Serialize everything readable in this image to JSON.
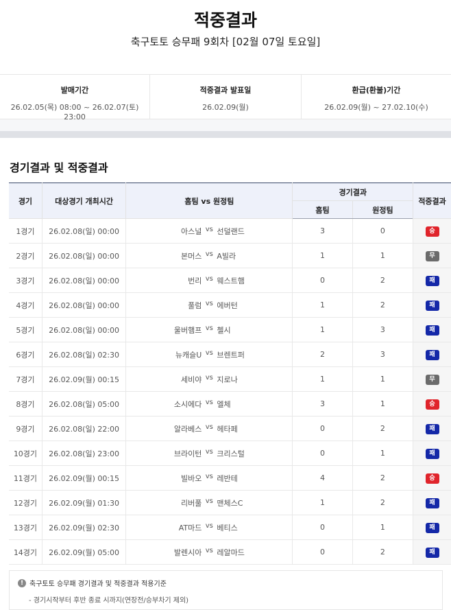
{
  "header": {
    "title": "적중결과",
    "subtitle": "축구토토 승무패 9회차 [02월 07일 토요일]"
  },
  "info": [
    {
      "label": "발매기간",
      "value": "26.02.05(목) 08:00 ~ 26.02.07(토) 23:00"
    },
    {
      "label": "적중결과 발표일",
      "value": "26.02.09(월)"
    },
    {
      "label": "환급(환불)기간",
      "value": "26.02.09(월) ~ 27.02.10(수)"
    }
  ],
  "section_title": "경기결과 및 적중결과",
  "table": {
    "headers": {
      "game": "경기",
      "time": "대상경기 개최시간",
      "match": "홈팀 vs 원정팀",
      "score": "경기결과",
      "home": "홈팀",
      "away": "원정팀",
      "result": "적중결과"
    },
    "vs": "vs",
    "result_colors": {
      "승": "#e0242b",
      "무": "#6b6b6b",
      "패": "#1428a8"
    },
    "rows": [
      {
        "game": "1경기",
        "time": "26.02.08(일) 00:00",
        "home": "아스널",
        "away": "선덜랜드",
        "hs": "3",
        "as": "0",
        "result": "승"
      },
      {
        "game": "2경기",
        "time": "26.02.08(일) 00:00",
        "home": "본머스",
        "away": "A빌라",
        "hs": "1",
        "as": "1",
        "result": "무"
      },
      {
        "game": "3경기",
        "time": "26.02.08(일) 00:00",
        "home": "번리",
        "away": "웨스트햄",
        "hs": "0",
        "as": "2",
        "result": "패"
      },
      {
        "game": "4경기",
        "time": "26.02.08(일) 00:00",
        "home": "풀럼",
        "away": "에버턴",
        "hs": "1",
        "as": "2",
        "result": "패"
      },
      {
        "game": "5경기",
        "time": "26.02.08(일) 00:00",
        "home": "울버햄프",
        "away": "첼시",
        "hs": "1",
        "as": "3",
        "result": "패"
      },
      {
        "game": "6경기",
        "time": "26.02.08(일) 02:30",
        "home": "뉴캐슬U",
        "away": "브렌트퍼",
        "hs": "2",
        "as": "3",
        "result": "패"
      },
      {
        "game": "7경기",
        "time": "26.02.09(월) 00:15",
        "home": "세비야",
        "away": "지로나",
        "hs": "1",
        "as": "1",
        "result": "무"
      },
      {
        "game": "8경기",
        "time": "26.02.08(일) 05:00",
        "home": "소시에다",
        "away": "엘체",
        "hs": "3",
        "as": "1",
        "result": "승"
      },
      {
        "game": "9경기",
        "time": "26.02.08(일) 22:00",
        "home": "알라베스",
        "away": "헤타페",
        "hs": "0",
        "as": "2",
        "result": "패"
      },
      {
        "game": "10경기",
        "time": "26.02.08(일) 23:00",
        "home": "브라이턴",
        "away": "크리스털",
        "hs": "0",
        "as": "1",
        "result": "패"
      },
      {
        "game": "11경기",
        "time": "26.02.09(월) 00:15",
        "home": "빌바오",
        "away": "레반테",
        "hs": "4",
        "as": "2",
        "result": "승"
      },
      {
        "game": "12경기",
        "time": "26.02.09(월) 01:30",
        "home": "리버풀",
        "away": "맨체스C",
        "hs": "1",
        "as": "2",
        "result": "패"
      },
      {
        "game": "13경기",
        "time": "26.02.09(월) 02:30",
        "home": "AT마드",
        "away": "베티스",
        "hs": "0",
        "as": "1",
        "result": "패"
      },
      {
        "game": "14경기",
        "time": "26.02.09(월) 05:00",
        "home": "발렌시아",
        "away": "레알마드",
        "hs": "0",
        "as": "2",
        "result": "패"
      }
    ]
  },
  "note": {
    "icon": "exclamation-icon",
    "title": "축구토토 승무패 경기결과 및 적중결과 적용기준",
    "desc": "- 경기시작부터 후반 종료 시까지(연장전/승부차기 제외)"
  }
}
